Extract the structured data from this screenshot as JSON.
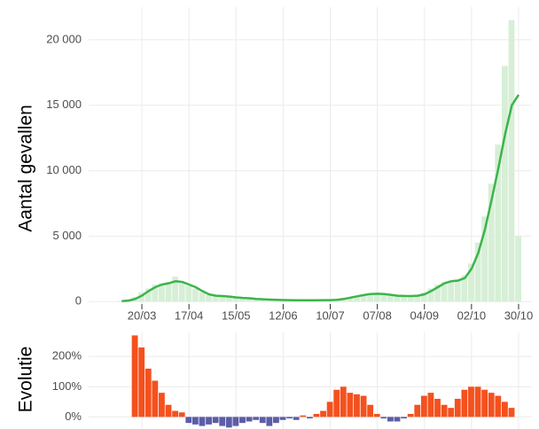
{
  "chart_data": [
    {
      "type": "bar",
      "ylabel": "Aantal gevallen",
      "categories": [
        null,
        null,
        null,
        null,
        "20/03",
        null,
        null,
        null,
        null,
        null,
        null,
        "17/04",
        null,
        null,
        null,
        null,
        null,
        null,
        "15/05",
        null,
        null,
        null,
        null,
        null,
        null,
        "12/06",
        null,
        null,
        null,
        null,
        null,
        null,
        "10/07",
        null,
        null,
        null,
        null,
        null,
        null,
        "07/08",
        null,
        null,
        null,
        null,
        null,
        null,
        "04/09",
        null,
        null,
        null,
        null,
        null,
        null,
        "02/10",
        null,
        null,
        null,
        null,
        null,
        null,
        "30/10"
      ],
      "series": [
        {
          "type": "bar",
          "color": "#d6efd6",
          "values": [
            0,
            50,
            150,
            350,
            700,
            1000,
            1300,
            1400,
            1500,
            1900,
            1400,
            1200,
            1000,
            700,
            500,
            450,
            400,
            350,
            300,
            270,
            230,
            200,
            170,
            140,
            120,
            110,
            100,
            100,
            90,
            100,
            110,
            110,
            120,
            150,
            250,
            350,
            450,
            550,
            650,
            600,
            550,
            500,
            420,
            430,
            400,
            500,
            700,
            1000,
            1300,
            1500,
            1600,
            1700,
            2000,
            2900,
            4500,
            6500,
            9000,
            12000,
            18000,
            21500,
            5000
          ]
        },
        {
          "type": "line",
          "color": "#3cb44b",
          "values": [
            null,
            30,
            80,
            200,
            450,
            800,
            1100,
            1300,
            1400,
            1550,
            1500,
            1300,
            1100,
            800,
            550,
            450,
            420,
            380,
            320,
            280,
            250,
            200,
            180,
            150,
            130,
            120,
            110,
            100,
            100,
            100,
            100,
            110,
            110,
            130,
            200,
            300,
            400,
            500,
            580,
            600,
            580,
            520,
            450,
            430,
            420,
            450,
            550,
            800,
            1100,
            1400,
            1550,
            1600,
            1800,
            2500,
            3700,
            5500,
            7800,
            10200,
            12800,
            15000,
            15800
          ]
        }
      ],
      "ylim": [
        -1000,
        22500
      ],
      "yticks": [
        0,
        {
          "value": 5000,
          "label": "5 000"
        },
        {
          "value": 10000,
          "label": "10 000"
        },
        {
          "value": 15000,
          "label": "15 000"
        },
        {
          "value": 20000,
          "label": "20 000"
        }
      ],
      "grid": true
    },
    {
      "type": "bar",
      "ylabel": "Evolutie",
      "values": [
        null,
        null,
        null,
        270,
        230,
        160,
        120,
        80,
        40,
        20,
        15,
        -20,
        -25,
        -30,
        -25,
        -20,
        -30,
        -35,
        -30,
        -20,
        -15,
        -10,
        -20,
        -30,
        -20,
        -10,
        -5,
        -10,
        5,
        -5,
        10,
        20,
        50,
        90,
        100,
        80,
        75,
        70,
        40,
        10,
        -5,
        -15,
        -15,
        -5,
        10,
        40,
        70,
        80,
        60,
        40,
        30,
        60,
        90,
        100,
        100,
        90,
        80,
        70,
        50,
        30,
        null
      ],
      "colors": {
        "positive": "#f4511e",
        "negative": "#5c5ca8"
      },
      "ylim": [
        -40,
        280
      ],
      "yticks": [
        {
          "value": 0,
          "label": "0%"
        },
        {
          "value": 100,
          "label": "100%"
        },
        {
          "value": 200,
          "label": "200%"
        }
      ],
      "grid": true
    }
  ]
}
